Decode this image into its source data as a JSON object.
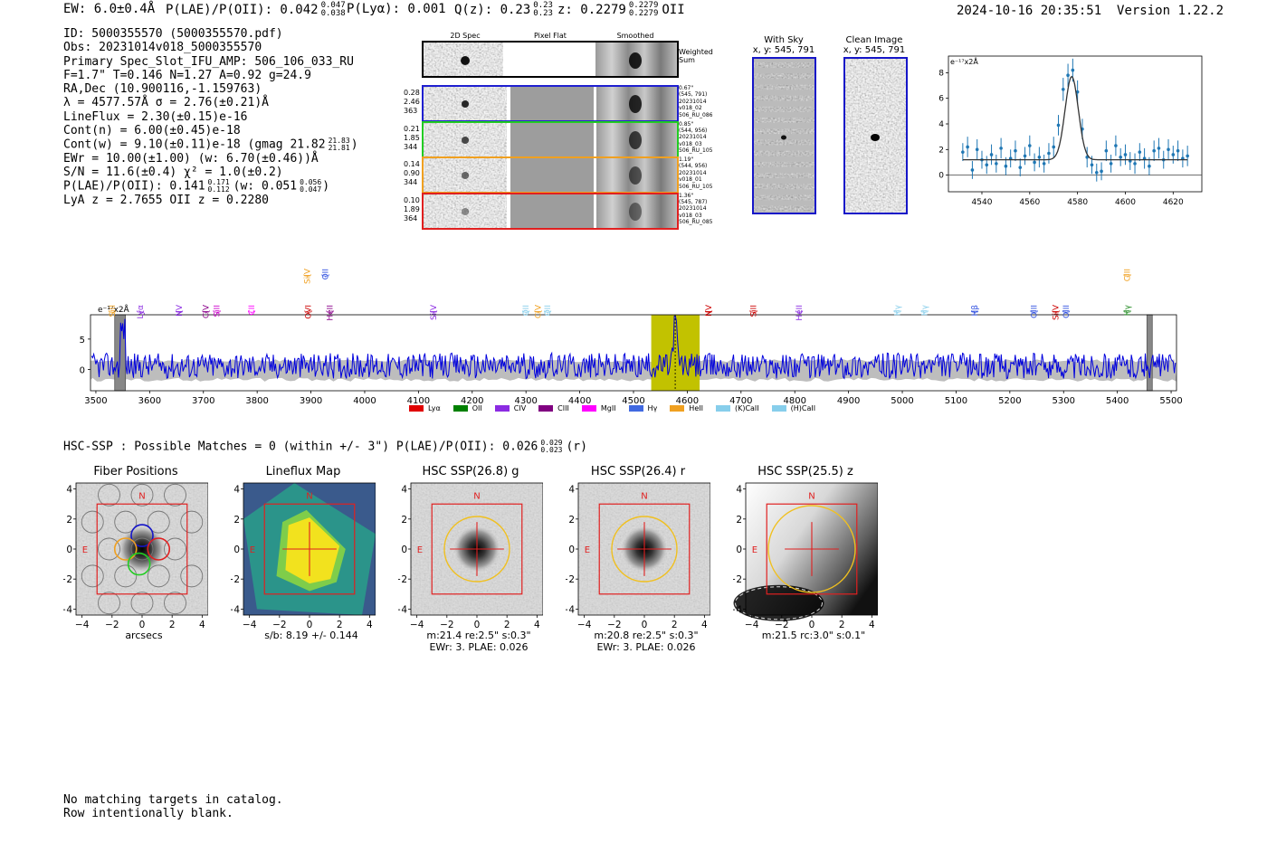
{
  "header": {
    "ew": "EW: 6.0±0.4Å",
    "plae_label": "P(LAE)/P(OII): 0.042",
    "plae_sup": "0.047",
    "plae_sub": "0.038",
    "plya": "P(Lyα): 0.001",
    "qz_label": "Q(z): 0.23",
    "qz_sup": "0.23",
    "qz_sub": "0.23",
    "z_label": "z: 0.2279",
    "z_sup": "0.2279",
    "z_sub": "0.2279",
    "line_id": "OII",
    "timestamp": "2024-10-16 20:35:51",
    "version": "Version 1.22.2"
  },
  "info": {
    "id": "ID: 5000355570 (5000355570.pdf)",
    "obs": "Obs: 20231014v018_5000355570",
    "primary": "Primary Spec_Slot_IFU_AMP: 506_106_033_RU",
    "fparams": "F=1.7\"  T=0.146  N=1.27  A=0.92  g=24.9",
    "radec": "RA,Dec (10.900116,-1.159763)",
    "lambda": "λ = 4577.57Å  σ = 2.76(±0.21)Å",
    "lineflux": "LineFlux = 2.30(±0.15)e-16",
    "contn": "Cont(n) = 6.00(±0.45)e-18",
    "contw_main": "Cont(w) = 9.10(±0.11)e-18 (gmag 21.82",
    "contw_sup": "21.83",
    "contw_sub": "21.81",
    "contw_end": ")",
    "ewr": "EWr = 10.00(±1.00) (w: 6.70(±0.46))Å",
    "sn": "S/N = 11.6(±0.4)  χ² = 1.0(±0.2)",
    "plae_main": "P(LAE)/P(OII): 0.141",
    "plae_sup": "0.171",
    "plae_sub": "0.112",
    "plae_w": "(w: 0.051",
    "plae_w_sup": "0.056",
    "plae_w_sub": "0.047",
    "plae_w_end": ")",
    "lya_z": "LyA z = 2.7655  OII z = 0.2280"
  },
  "cutouts": {
    "col_2d": "2D Spec",
    "col_flat": "Pixel Flat",
    "col_smooth": "Smoothed",
    "weighted": "Weighted Sum",
    "rows": [
      {
        "left": [
          "0.28",
          "2.46",
          "363"
        ],
        "right": [
          "0.67\"",
          "(545, 791)",
          "20231014",
          "v018_02",
          "506_RU_086"
        ],
        "color": "#1f1fd0"
      },
      {
        "left": [
          "0.21",
          "1.85",
          "344"
        ],
        "right": [
          "0.85\"",
          "(544, 956)",
          "20231014",
          "v018_03",
          "506_RU_105"
        ],
        "color": "#22cc22"
      },
      {
        "left": [
          "0.14",
          "0.90",
          "344"
        ],
        "right": [
          "1.19\"",
          "(544, 956)",
          "20231014",
          "v018_01",
          "506_RU_105"
        ],
        "color": "#f0a020"
      },
      {
        "left": [
          "0.10",
          "1.89",
          "364"
        ],
        "right": [
          "1.36\"",
          "(545, 787)",
          "20231014",
          "v018_03",
          "506_RU_085"
        ],
        "color": "#e02020"
      }
    ]
  },
  "sky": {
    "with_sky": "With Sky",
    "with_sky_xy": "x, y: 545, 791",
    "clean": "Clean Image",
    "clean_xy": "x, y: 545, 791"
  },
  "line_fit": {
    "type": "scatter",
    "ylabel": "e⁻¹⁷x2Å",
    "xlim": [
      4526,
      4632
    ],
    "ylim": [
      -1.3,
      9.3
    ],
    "xticks": [
      "4540",
      "4560",
      "4580",
      "4600",
      "4620"
    ],
    "yticks": [
      "0",
      "2",
      "4",
      "6",
      "8"
    ],
    "fit_center": 4577.57,
    "fit_sigma": 2.76,
    "fit_amp": 6.5,
    "fit_base": 1.2,
    "x": [
      4532,
      4534,
      4536,
      4538,
      4540,
      4542,
      4544,
      4546,
      4548,
      4550,
      4552,
      4554,
      4556,
      4558,
      4560,
      4562,
      4564,
      4566,
      4568,
      4570,
      4572,
      4574,
      4576,
      4578,
      4580,
      4582,
      4584,
      4586,
      4588,
      4590,
      4592,
      4594,
      4596,
      4598,
      4600,
      4602,
      4604,
      4606,
      4608,
      4610,
      4612,
      4614,
      4616,
      4618,
      4620,
      4622,
      4624,
      4626
    ],
    "y": [
      1.8,
      2.2,
      0.4,
      2.0,
      1.2,
      0.8,
      1.6,
      0.9,
      2.1,
      0.7,
      1.3,
      1.9,
      0.6,
      1.5,
      2.3,
      1.0,
      1.4,
      0.9,
      1.7,
      2.2,
      3.9,
      6.7,
      7.8,
      8.2,
      6.5,
      3.6,
      1.4,
      0.8,
      0.2,
      0.3,
      1.9,
      0.9,
      2.3,
      1.4,
      1.6,
      1.1,
      0.9,
      1.8,
      1.3,
      0.7,
      1.9,
      2.1,
      1.2,
      2.0,
      1.6,
      1.9,
      1.3,
      1.5
    ],
    "err": [
      0.7,
      0.8,
      0.7,
      0.8,
      0.7,
      0.7,
      0.8,
      0.7,
      0.8,
      0.7,
      0.7,
      0.8,
      0.7,
      0.7,
      0.8,
      0.7,
      0.8,
      0.7,
      0.8,
      0.8,
      0.8,
      0.9,
      0.9,
      0.9,
      0.9,
      0.8,
      0.8,
      0.7,
      0.7,
      0.7,
      0.8,
      0.7,
      0.8,
      0.7,
      0.8,
      0.7,
      0.8,
      0.7,
      0.8,
      0.7,
      0.8,
      0.8,
      0.7,
      0.8,
      0.7,
      0.8,
      0.7,
      0.8
    ]
  },
  "spectrum": {
    "type": "line",
    "ylabel": "e⁻¹⁷x2Å",
    "xlim": [
      3490,
      5510
    ],
    "ylim": [
      -3.5,
      9
    ],
    "xticks": [
      "3500",
      "3600",
      "3700",
      "3800",
      "3900",
      "4000",
      "4100",
      "4200",
      "4300",
      "4400",
      "4500",
      "4600",
      "4700",
      "4800",
      "4900",
      "5000",
      "5100",
      "5200",
      "5300",
      "5400",
      "5500"
    ],
    "yticks": [
      "0",
      "5"
    ],
    "highlight_range": [
      4533,
      4623
    ],
    "line_center": 4577.57,
    "bad_regions": [
      [
        3535,
        3555
      ],
      [
        5455,
        5465
      ]
    ],
    "line_labels": [
      {
        "name": "SiII",
        "wave": 3530,
        "color": "#f0a020",
        "row": 1
      },
      {
        "name": "Lyα",
        "wave": 3583,
        "color": "#8b2be2",
        "row": 1
      },
      {
        "name": "NV",
        "wave": 3655,
        "color": "#8b2be2",
        "row": 1
      },
      {
        "name": "CIV",
        "wave": 3705,
        "color": "#8b008b",
        "row": 1
      },
      {
        "name": "SiII",
        "wave": 3725,
        "color": "#cc00cc",
        "row": 1
      },
      {
        "name": "CII",
        "wave": 3790,
        "color": "#ff00ff",
        "row": 1
      },
      {
        "name": "SiIV",
        "wave": 3893,
        "color": "#f0a020",
        "row": 0
      },
      {
        "name": "OII",
        "wave": 3927,
        "color": "#3050e0",
        "row": 0
      },
      {
        "name": "OVI",
        "wave": 3895,
        "color": "#cc0000",
        "row": 1
      },
      {
        "name": "HeII",
        "wave": 3935,
        "color": "#8b008b",
        "row": 1
      },
      {
        "name": "SiIV",
        "wave": 4128,
        "color": "#8b2be2",
        "row": 1
      },
      {
        "name": "OII",
        "wave": 4300,
        "color": "#87ceeb",
        "row": 1
      },
      {
        "name": "CIV",
        "wave": 4322,
        "color": "#f0a020",
        "row": 1
      },
      {
        "name": "OII",
        "wave": 4340,
        "color": "#87ceeb",
        "row": 1
      },
      {
        "name": "NV",
        "wave": 4640,
        "color": "#cc0000",
        "row": 1
      },
      {
        "name": "SiII",
        "wave": 4723,
        "color": "#cc0000",
        "row": 1
      },
      {
        "name": "HeII",
        "wave": 4808,
        "color": "#8b2be2",
        "row": 1
      },
      {
        "name": "Hγ",
        "wave": 4991,
        "color": "#87ceeb",
        "row": 1
      },
      {
        "name": "Hγ",
        "wave": 5041,
        "color": "#87ceeb",
        "row": 1
      },
      {
        "name": "Hβ",
        "wave": 5135,
        "color": "#3050e0",
        "row": 1
      },
      {
        "name": "OIII",
        "wave": 5245,
        "color": "#3050e0",
        "row": 1
      },
      {
        "name": "SiIV",
        "wave": 5285,
        "color": "#cc0000",
        "row": 1
      },
      {
        "name": "OIII",
        "wave": 5305,
        "color": "#3050e0",
        "row": 1
      },
      {
        "name": "CIII",
        "wave": 5418,
        "color": "#f0a020",
        "row": 0
      },
      {
        "name": "Hγ",
        "wave": 5418,
        "color": "#228b22",
        "row": 1
      }
    ],
    "legend": [
      {
        "name": "Lyα",
        "color": "#e00000"
      },
      {
        "name": "OII",
        "color": "#008000"
      },
      {
        "name": "CIV",
        "color": "#8b2be2"
      },
      {
        "name": "CIII",
        "color": "#800080"
      },
      {
        "name": "MgII",
        "color": "#ff00ff"
      },
      {
        "name": "Hγ",
        "color": "#4169e1"
      },
      {
        "name": "HeII",
        "color": "#f0a020"
      },
      {
        "name": "(K)CaII",
        "color": "#87ceeb"
      },
      {
        "name": "(H)CaII",
        "color": "#87ceeb"
      }
    ]
  },
  "hsc": {
    "header": "HSC-SSP : Possible Matches = 0 (within +/- 3\")  P(LAE)/P(OII): 0.026",
    "header_sup": "0.029",
    "header_sub": "0.023",
    "header_end": "(r)",
    "ticks": [
      "−4",
      "−2",
      "0",
      "2",
      "4"
    ],
    "north": "N",
    "east": "E",
    "panels": [
      {
        "title": "Fiber Positions",
        "cap1": "arcsecs",
        "cap2": ""
      },
      {
        "title": "Lineflux Map",
        "cap1": "s/b: 8.19 +/- 0.144",
        "cap2": ""
      },
      {
        "title": "HSC SSP(26.8) g",
        "cap1": "m:21.4  re:2.5\"  s:0.3\"",
        "cap2": "EWr: 3. PLAE: 0.026"
      },
      {
        "title": "HSC SSP(26.4) r",
        "cap1": "m:20.8  re:2.5\"  s:0.3\"",
        "cap2": "EWr: 3. PLAE: 0.026"
      },
      {
        "title": "HSC SSP(25.5) z",
        "cap1": "m:21.5 rc:3.0\"  s:0.1\"",
        "cap2": ""
      }
    ]
  },
  "footer": {
    "line1": "No matching targets in catalog.",
    "line2": "Row intentionally blank."
  }
}
